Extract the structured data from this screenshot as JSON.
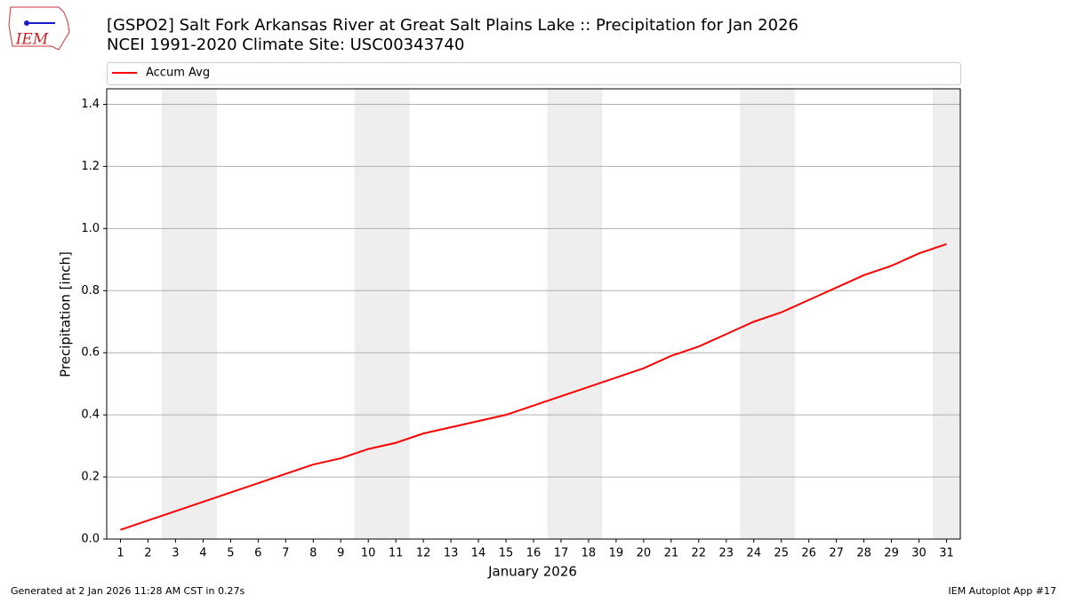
{
  "logo_text": "IEM",
  "footer_left": "Generated at 2 Jan 2026 11:28 AM CST in 0.27s",
  "footer_right": "IEM Autoplot App #17",
  "chart_data": {
    "type": "line",
    "title": "[GSPO2] Salt Fork Arkansas River at Great Salt Plains Lake :: Precipitation for Jan 2026",
    "subtitle": "NCEI 1991-2020 Climate Site: USC00343740",
    "x_label": "January 2026",
    "y_label": "Precipitation [inch]",
    "x": [
      1,
      2,
      3,
      4,
      5,
      6,
      7,
      8,
      9,
      10,
      11,
      12,
      13,
      14,
      15,
      16,
      17,
      18,
      19,
      20,
      21,
      22,
      23,
      24,
      25,
      26,
      27,
      28,
      29,
      30,
      31
    ],
    "series": [
      {
        "name": "Accum Avg",
        "color": "#ff0000",
        "values": [
          0.03,
          0.06,
          0.09,
          0.12,
          0.15,
          0.18,
          0.21,
          0.24,
          0.26,
          0.29,
          0.31,
          0.34,
          0.36,
          0.38,
          0.4,
          0.43,
          0.46,
          0.49,
          0.52,
          0.55,
          0.59,
          0.62,
          0.66,
          0.7,
          0.73,
          0.77,
          0.81,
          0.85,
          0.88,
          0.92,
          0.95
        ]
      }
    ],
    "xlim": [
      0.5,
      31.5
    ],
    "xticks": [
      1,
      2,
      3,
      4,
      5,
      6,
      7,
      8,
      9,
      10,
      11,
      12,
      13,
      14,
      15,
      16,
      17,
      18,
      19,
      20,
      21,
      22,
      23,
      24,
      25,
      26,
      27,
      28,
      29,
      30,
      31
    ],
    "ylim": [
      0,
      1.45
    ],
    "yticks": [
      {
        "value": 0,
        "label": "0.0"
      },
      {
        "value": 0.2,
        "label": "0.2"
      },
      {
        "value": 0.4,
        "label": "0.4"
      },
      {
        "value": 0.6,
        "label": "0.6"
      },
      {
        "value": 0.8,
        "label": "0.8"
      },
      {
        "value": 1.0,
        "label": "1.0"
      },
      {
        "value": 1.2,
        "label": "1.2"
      },
      {
        "value": 1.4,
        "label": "1.4"
      }
    ],
    "grid": "y",
    "shaded_ranges": [
      [
        2.5,
        4.5
      ],
      [
        9.5,
        11.5
      ],
      [
        16.5,
        18.5
      ],
      [
        23.5,
        25.5
      ],
      [
        30.5,
        31.5
      ]
    ],
    "shade_color": "#eeeeee",
    "legend": "top"
  }
}
